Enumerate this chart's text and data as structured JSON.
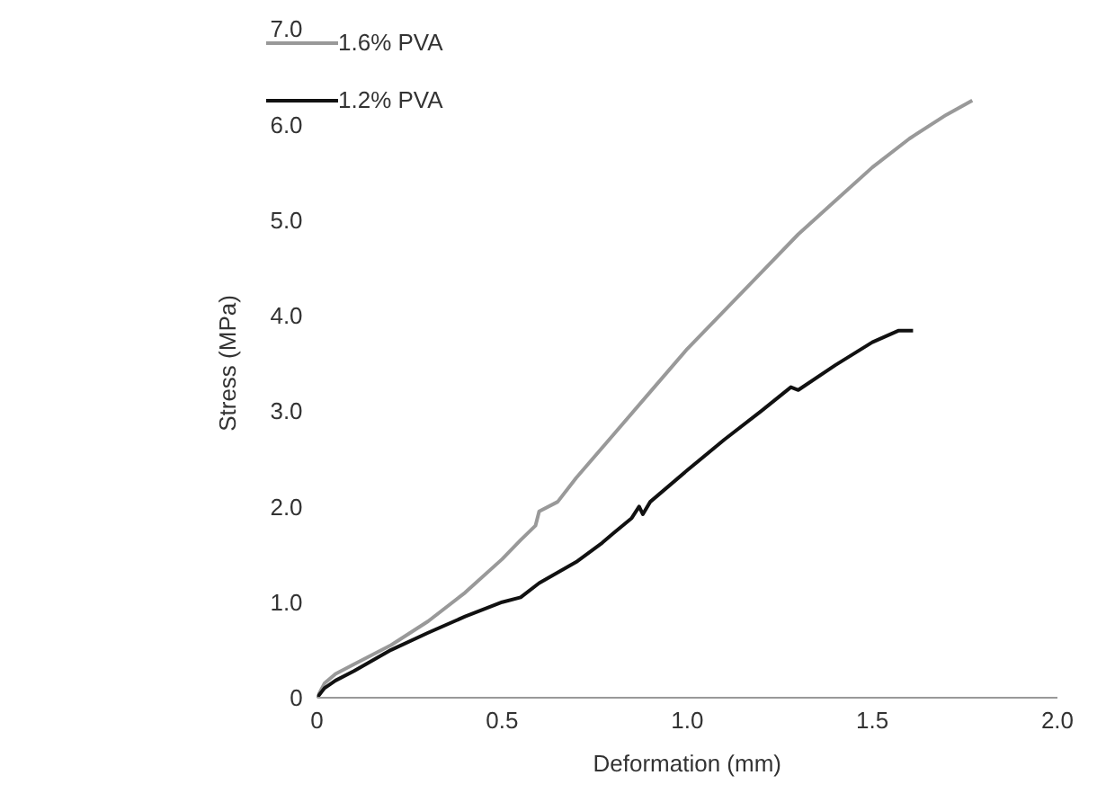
{
  "chart_data": {
    "type": "line",
    "xlabel": "Deformation (mm)",
    "ylabel": "Stress (MPa)",
    "xlim": [
      0,
      2.0
    ],
    "xticks": [
      0,
      {
        "value": 0.5,
        "label": "0.5"
      },
      {
        "value": 1,
        "label": "1.0"
      },
      {
        "value": 1.5,
        "label": "1.5"
      },
      {
        "value": 2,
        "label": "2.0"
      }
    ],
    "ylim": [
      0,
      7
    ],
    "yticks": [
      0,
      {
        "value": 1,
        "label": "1.0"
      },
      {
        "value": 2,
        "label": "2.0"
      },
      {
        "value": 3,
        "label": "3.0"
      },
      {
        "value": 4,
        "label": "4.0"
      },
      {
        "value": 5,
        "label": "5.0"
      },
      {
        "value": 6,
        "label": "6.0"
      },
      {
        "value": 7,
        "label": "7.0"
      }
    ],
    "grid": false,
    "legend": "top left",
    "marker": "none",
    "line_style": "solid",
    "series": [
      {
        "name": "1.6% PVA",
        "color": "#999999",
        "x": [
          0,
          0.02,
          0.05,
          0.1,
          0.2,
          0.3,
          0.4,
          0.5,
          0.55,
          0.59,
          0.6,
          0.65,
          0.7,
          0.8,
          0.9,
          1.0,
          1.1,
          1.2,
          1.3,
          1.4,
          1.5,
          1.6,
          1.7,
          1.77
        ],
        "values": [
          0,
          0.15,
          0.25,
          0.35,
          0.55,
          0.8,
          1.1,
          1.45,
          1.65,
          1.8,
          1.95,
          2.05,
          2.3,
          2.75,
          3.2,
          3.65,
          4.05,
          4.45,
          4.85,
          5.2,
          5.55,
          5.85,
          6.1,
          6.25
        ]
      },
      {
        "name": "1.2% PVA",
        "color": "#111111",
        "x": [
          0,
          0.02,
          0.05,
          0.1,
          0.2,
          0.3,
          0.4,
          0.5,
          0.55,
          0.6,
          0.7,
          0.77,
          0.8,
          0.85,
          0.87,
          0.88,
          0.9,
          1.0,
          1.1,
          1.2,
          1.28,
          1.3,
          1.4,
          1.5,
          1.57,
          1.61
        ],
        "values": [
          0,
          0.1,
          0.18,
          0.28,
          0.5,
          0.68,
          0.85,
          1.0,
          1.05,
          1.2,
          1.42,
          1.62,
          1.72,
          1.88,
          2.0,
          1.92,
          2.05,
          2.38,
          2.7,
          3.0,
          3.25,
          3.22,
          3.48,
          3.72,
          3.84,
          3.84
        ]
      }
    ]
  }
}
